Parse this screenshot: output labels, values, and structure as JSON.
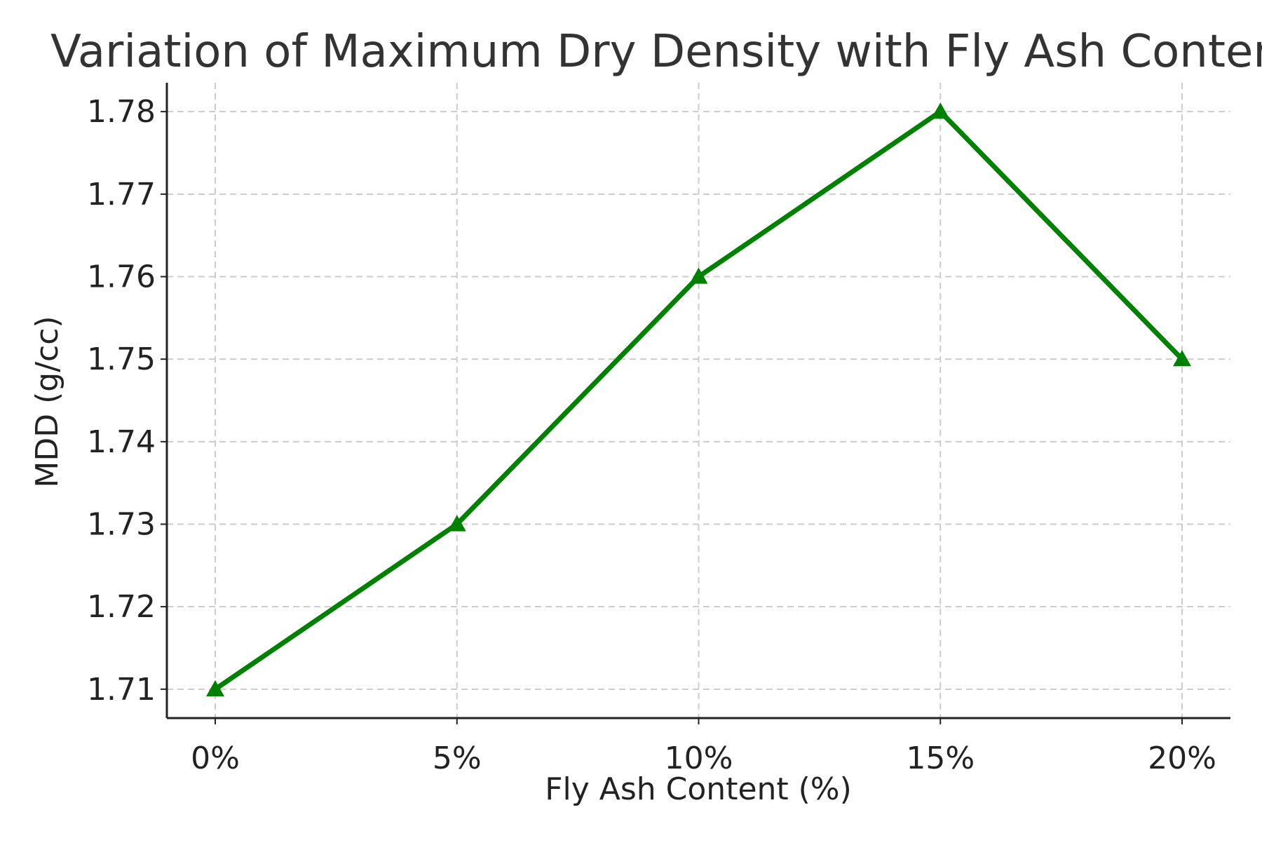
{
  "chart_data": {
    "type": "line",
    "title": "Variation of Maximum Dry Density with Fly Ash Content",
    "xlabel": "Fly Ash Content (%)",
    "ylabel": "MDD (g/cc)",
    "categories": [
      "0%",
      "5%",
      "10%",
      "15%",
      "20%"
    ],
    "series": [
      {
        "values": [
          1.71,
          1.73,
          1.76,
          1.78,
          1.75
        ],
        "color": "#008000",
        "marker": "triangle-up"
      }
    ],
    "yticks": [
      "1.71",
      "1.72",
      "1.73",
      "1.74",
      "1.75",
      "1.76",
      "1.77",
      "1.78"
    ],
    "ylim": [
      1.7065,
      1.7835
    ],
    "grid": true,
    "legend": "none"
  }
}
